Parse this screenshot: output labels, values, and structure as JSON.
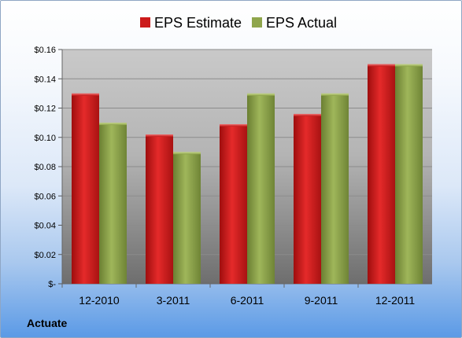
{
  "chart_data": {
    "type": "bar",
    "categories": [
      "12-2010",
      "3-2011",
      "6-2011",
      "9-2011",
      "12-2011"
    ],
    "series": [
      {
        "name": "EPS Estimate",
        "color": "#d01c1c",
        "values": [
          0.13,
          0.102,
          0.109,
          0.116,
          0.15
        ]
      },
      {
        "name": "EPS Actual",
        "color": "#8fa64c",
        "values": [
          0.11,
          0.09,
          0.13,
          0.13,
          0.15
        ]
      }
    ],
    "yticks": [
      "$-",
      "$0.02",
      "$0.04",
      "$0.06",
      "$0.08",
      "$0.10",
      "$0.12",
      "$0.14",
      "$0.16"
    ],
    "ylim": [
      0,
      0.16
    ],
    "grid": true,
    "legend_position": "top"
  },
  "footer": {
    "company": "Actuate"
  }
}
